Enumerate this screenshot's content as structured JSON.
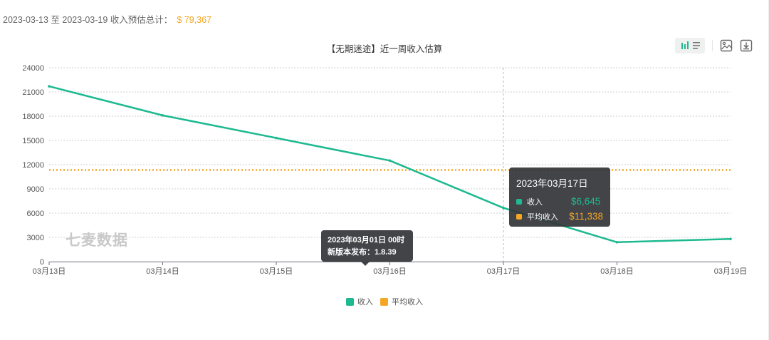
{
  "summary": {
    "label": "2023-03-13 至 2023-03-19 收入预估总计：",
    "total": "$ 79,367"
  },
  "toolbar": {
    "bars_icon": "bar-chart-icon",
    "list_icon": "list-icon",
    "image_icon": "save-image-icon",
    "download_icon": "download-icon"
  },
  "watermark": "七麦数据",
  "tooltip": {
    "title": "2023年03月17日",
    "items": [
      {
        "name": "收入",
        "value": "$6,645",
        "color": "#1db990"
      },
      {
        "name": "平均收入",
        "value": "$11,338",
        "color": "#f5a623"
      }
    ]
  },
  "note": {
    "line1": "2023年03月01日 00时",
    "line2": "新版本发布：1.8.39"
  },
  "chart_data": {
    "type": "line",
    "title": "【无期迷途】近一周收入估算",
    "categories": [
      "03月13日",
      "03月14日",
      "03月15日",
      "03月16日",
      "03月17日",
      "03月18日",
      "03月19日"
    ],
    "series": [
      {
        "name": "收入",
        "color": "#1db990",
        "values": [
          21700,
          18100,
          15300,
          12500,
          6645,
          2400,
          2800
        ]
      },
      {
        "name": "平均收入",
        "color": "#f5a623",
        "style": "dotted",
        "values": [
          11338,
          11338,
          11338,
          11338,
          11338,
          11338,
          11338
        ]
      }
    ],
    "yticks": [
      0,
      3000,
      6000,
      9000,
      12000,
      15000,
      18000,
      21000,
      24000
    ],
    "ylim": [
      0,
      24000
    ],
    "xlabel": "",
    "ylabel": "",
    "grid": true,
    "legend": "bottom-center",
    "highlighted_category": "03月17日"
  }
}
